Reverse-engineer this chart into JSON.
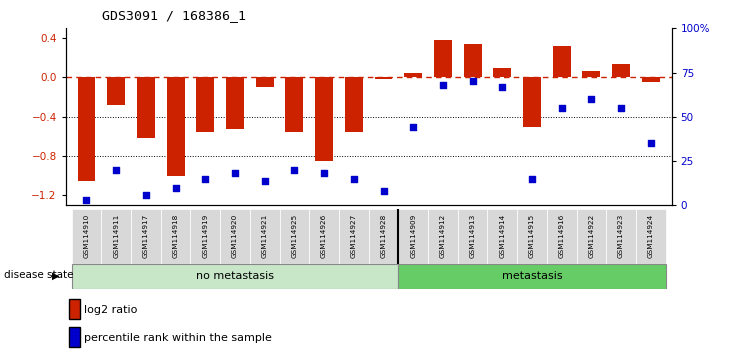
{
  "title": "GDS3091 / 168386_1",
  "samples": [
    "GSM114910",
    "GSM114911",
    "GSM114917",
    "GSM114918",
    "GSM114919",
    "GSM114920",
    "GSM114921",
    "GSM114925",
    "GSM114926",
    "GSM114927",
    "GSM114928",
    "GSM114909",
    "GSM114912",
    "GSM114913",
    "GSM114914",
    "GSM114915",
    "GSM114916",
    "GSM114922",
    "GSM114923",
    "GSM114924"
  ],
  "log2_ratio": [
    -1.05,
    -0.28,
    -0.62,
    -1.0,
    -0.55,
    -0.52,
    -0.1,
    -0.55,
    -0.85,
    -0.55,
    -0.02,
    0.05,
    0.38,
    0.34,
    0.1,
    -0.5,
    0.32,
    0.07,
    0.14,
    -0.05
  ],
  "percentile_rank": [
    3,
    20,
    6,
    10,
    15,
    18,
    14,
    20,
    18,
    15,
    8,
    44,
    68,
    70,
    67,
    15,
    55,
    60,
    55,
    35
  ],
  "group_labels": [
    "no metastasis",
    "metastasis"
  ],
  "group_sizes": [
    11,
    9
  ],
  "group_colors": [
    "#c8e6c8",
    "#66cc66"
  ],
  "bar_color": "#cc2200",
  "dot_color": "#0000cc",
  "ylim_left": [
    -1.3,
    0.5
  ],
  "ylim_right": [
    0,
    100
  ],
  "yticks_left": [
    -1.2,
    -0.8,
    -0.4,
    0.0,
    0.4
  ],
  "yticks_right": [
    0,
    25,
    50,
    75,
    100
  ],
  "dotted_lines": [
    -0.4,
    -0.8
  ],
  "background_color": "#ffffff"
}
